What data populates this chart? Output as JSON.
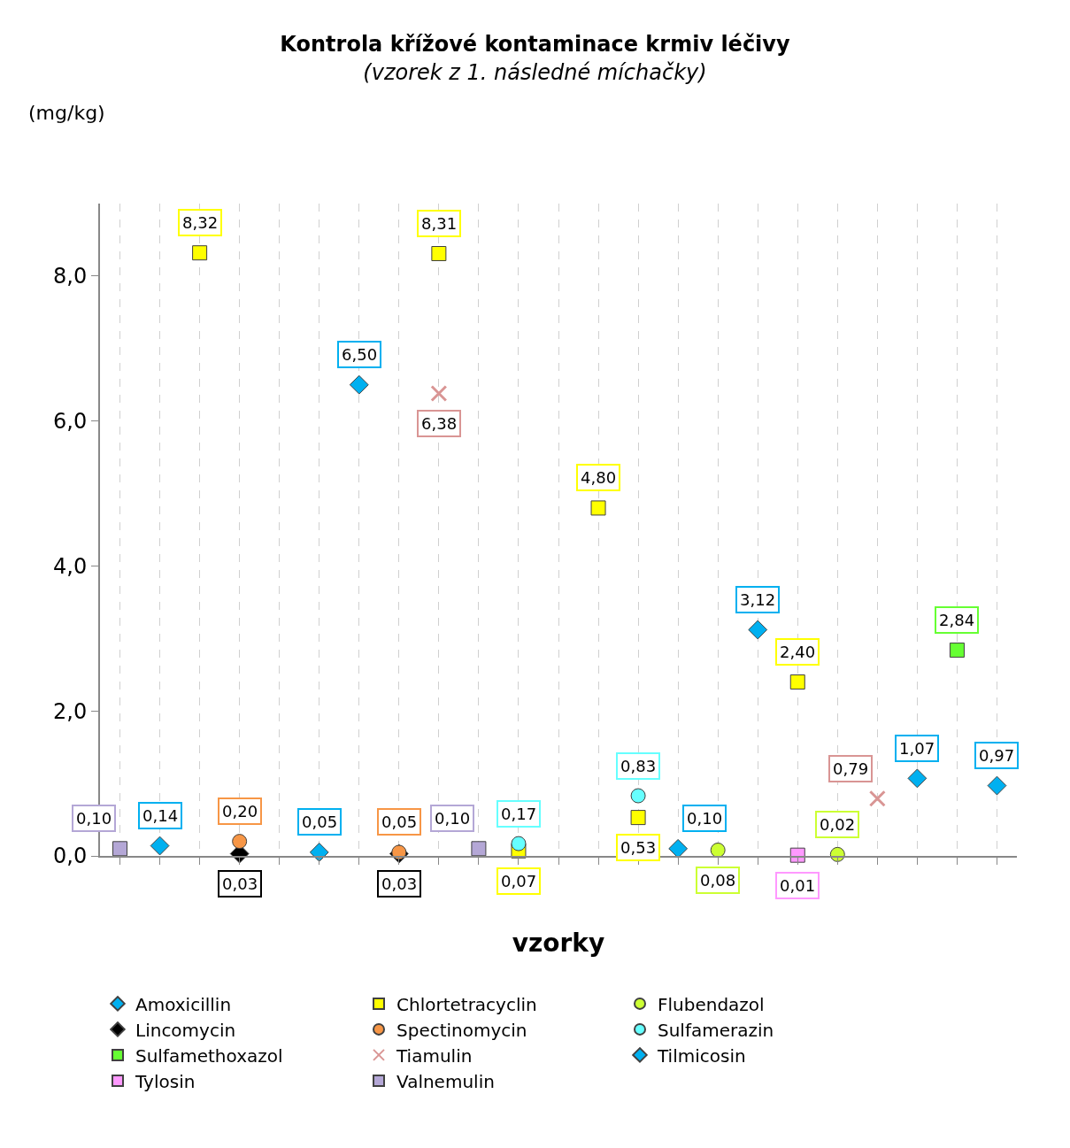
{
  "chart_data": {
    "type": "scatter",
    "title": "Kontrola křížové kontaminace krmiv léčivy",
    "subtitle": "(vzorek z 1. následné míchačky)",
    "ylabel": "(mg/kg)",
    "xlabel": "vzorky",
    "categories": [
      null,
      null,
      null,
      null,
      null,
      null,
      null,
      null,
      null,
      null,
      null,
      null,
      null,
      null,
      null,
      null,
      null,
      null,
      null,
      null,
      null,
      null,
      null
    ],
    "ylim": [
      0,
      9.0
    ],
    "yticks": [
      {
        "value": 0,
        "label": "0,0"
      },
      {
        "value": 2,
        "label": "2,0"
      },
      {
        "value": 4,
        "label": "4,0"
      },
      {
        "value": 6,
        "label": "6,0"
      },
      {
        "value": 8,
        "label": "8,0"
      }
    ],
    "grid": "x",
    "legend": "bottom",
    "series": [
      {
        "name": "Amoxicillin",
        "color": "#00b0f0",
        "marker": "diamond",
        "values": [
          null,
          null,
          null,
          null,
          null,
          0.05,
          null,
          null,
          null,
          null,
          null,
          null,
          null,
          null,
          0.1,
          null,
          3.12,
          null,
          null,
          null,
          null,
          null,
          0.97
        ],
        "value_labels": [
          null,
          null,
          null,
          null,
          null,
          "0,05",
          null,
          null,
          null,
          null,
          null,
          null,
          null,
          null,
          "0,10",
          null,
          "3,12",
          null,
          null,
          null,
          null,
          null,
          "0,97"
        ]
      },
      {
        "name": "Chlortetracyclin",
        "color": "#ffff00",
        "marker": "square",
        "values": [
          null,
          null,
          8.32,
          null,
          null,
          null,
          null,
          null,
          8.31,
          null,
          0.07,
          null,
          4.8,
          0.53,
          null,
          null,
          null,
          2.4,
          null,
          null,
          null,
          null,
          null
        ],
        "value_labels": [
          null,
          null,
          "8,32",
          null,
          null,
          null,
          null,
          null,
          "8,31",
          null,
          "0,07",
          null,
          "4,80",
          "0,53",
          null,
          null,
          null,
          "2,40",
          null,
          null,
          null,
          null,
          null
        ]
      },
      {
        "name": "Flubendazol",
        "color": "#ccff33",
        "marker": "circle",
        "values": [
          null,
          null,
          null,
          null,
          null,
          null,
          null,
          null,
          null,
          null,
          null,
          null,
          null,
          null,
          null,
          0.08,
          null,
          null,
          0.02,
          null,
          null,
          null,
          null
        ],
        "value_labels": [
          null,
          null,
          null,
          null,
          null,
          null,
          null,
          null,
          null,
          null,
          null,
          null,
          null,
          null,
          null,
          "0,08",
          null,
          null,
          "0,02",
          null,
          null,
          null,
          null
        ]
      },
      {
        "name": "Lincomycin",
        "color": "#000000",
        "marker": "diamond",
        "values": [
          null,
          null,
          null,
          0.03,
          null,
          null,
          null,
          0.03,
          null,
          null,
          null,
          null,
          null,
          null,
          null,
          null,
          null,
          null,
          null,
          null,
          null,
          null,
          null
        ],
        "value_labels": [
          null,
          null,
          null,
          "0,03",
          null,
          null,
          null,
          "0,03",
          null,
          null,
          null,
          null,
          null,
          null,
          null,
          null,
          null,
          null,
          null,
          null,
          null,
          null,
          null
        ]
      },
      {
        "name": "Spectinomycin",
        "color": "#f79646",
        "marker": "circle",
        "values": [
          null,
          null,
          null,
          0.2,
          null,
          null,
          null,
          0.05,
          null,
          null,
          null,
          null,
          null,
          null,
          null,
          null,
          null,
          null,
          null,
          null,
          null,
          null,
          null
        ],
        "value_labels": [
          null,
          null,
          null,
          "0,20",
          null,
          null,
          null,
          "0,05",
          null,
          null,
          null,
          null,
          null,
          null,
          null,
          null,
          null,
          null,
          null,
          null,
          null,
          null,
          null
        ]
      },
      {
        "name": "Sulfamerazin",
        "color": "#66ffff",
        "marker": "circle",
        "values": [
          null,
          null,
          null,
          null,
          null,
          null,
          null,
          null,
          null,
          null,
          0.17,
          null,
          null,
          0.83,
          null,
          null,
          null,
          null,
          null,
          null,
          null,
          null,
          null
        ],
        "value_labels": [
          null,
          null,
          null,
          null,
          null,
          null,
          null,
          null,
          null,
          null,
          "0,17",
          null,
          null,
          "0,83",
          null,
          null,
          null,
          null,
          null,
          null,
          null,
          null,
          null
        ]
      },
      {
        "name": "Sulfamethoxazol",
        "color": "#66ff33",
        "marker": "square",
        "values": [
          null,
          null,
          null,
          null,
          null,
          null,
          null,
          null,
          null,
          null,
          null,
          null,
          null,
          null,
          null,
          null,
          null,
          null,
          null,
          null,
          null,
          2.84,
          null
        ],
        "value_labels": [
          null,
          null,
          null,
          null,
          null,
          null,
          null,
          null,
          null,
          null,
          null,
          null,
          null,
          null,
          null,
          null,
          null,
          null,
          null,
          null,
          null,
          "2,84",
          null
        ]
      },
      {
        "name": "Tiamulin",
        "color": "#d99594",
        "marker": "cross",
        "values": [
          null,
          null,
          null,
          null,
          null,
          null,
          null,
          null,
          6.38,
          null,
          null,
          null,
          null,
          null,
          null,
          null,
          null,
          null,
          null,
          0.79,
          null,
          null,
          null
        ],
        "value_labels": [
          null,
          null,
          null,
          null,
          null,
          null,
          null,
          null,
          "6,38",
          null,
          null,
          null,
          null,
          null,
          null,
          null,
          null,
          null,
          null,
          "0,79",
          null,
          null,
          null
        ]
      },
      {
        "name": "Tilmicosin",
        "color": "#00b0f0",
        "marker": "diamond",
        "values": [
          null,
          0.14,
          null,
          null,
          null,
          null,
          6.5,
          null,
          null,
          null,
          null,
          null,
          null,
          null,
          null,
          null,
          null,
          null,
          null,
          null,
          1.07,
          null,
          null
        ],
        "value_labels": [
          null,
          "0,14",
          null,
          null,
          null,
          null,
          "6,50",
          null,
          null,
          null,
          null,
          null,
          null,
          null,
          null,
          null,
          null,
          null,
          null,
          null,
          "1,07",
          null,
          null
        ]
      },
      {
        "name": "Tylosin",
        "color": "#ff99ff",
        "marker": "square",
        "values": [
          null,
          null,
          null,
          null,
          null,
          null,
          null,
          null,
          null,
          null,
          null,
          null,
          null,
          null,
          null,
          null,
          null,
          0.01,
          null,
          null,
          null,
          null,
          null
        ],
        "value_labels": [
          null,
          null,
          null,
          null,
          null,
          null,
          null,
          null,
          null,
          null,
          null,
          null,
          null,
          null,
          null,
          null,
          null,
          "0,01",
          null,
          null,
          null,
          null,
          null
        ]
      },
      {
        "name": "Valnemulin",
        "color": "#b4a7d6",
        "marker": "square",
        "values": [
          0.1,
          null,
          null,
          null,
          null,
          null,
          null,
          null,
          null,
          0.1,
          null,
          null,
          null,
          null,
          null,
          null,
          null,
          null,
          null,
          null,
          null,
          null,
          null
        ],
        "value_labels": [
          "0,10",
          null,
          null,
          null,
          null,
          null,
          null,
          null,
          null,
          "0,10",
          null,
          null,
          null,
          null,
          null,
          null,
          null,
          null,
          null,
          null,
          null,
          null,
          null
        ]
      }
    ]
  }
}
